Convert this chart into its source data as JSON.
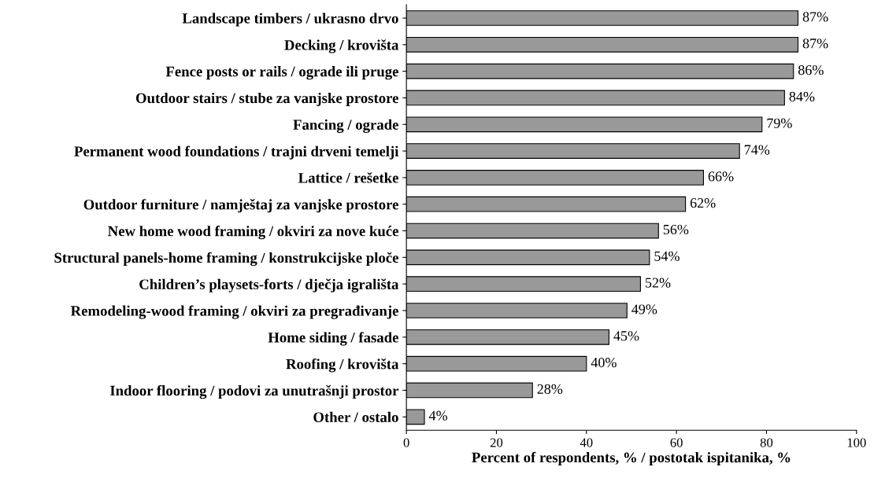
{
  "chart_data": {
    "type": "bar",
    "orientation": "horizontal",
    "xlabel": "Percent of respondents, % / postotak ispitanika, %",
    "categories": [
      "Landscape timbers / ukrasno drvo",
      "Decking / krovišta",
      "Fence posts or rails / ograde ili pruge",
      "Outdoor stairs / stube za vanjske prostore",
      "Fancing / ograde",
      "Permanent wood foundations / trajni drveni temelji",
      "Lattice / rešetke",
      "Outdoor furniture / namještaj za vanjske prostore",
      "New home wood framing / okviri za nove kuće",
      "Structural panels-home framing / konstrukcijske ploče",
      "Children’s playsets-forts / dječja igrališta",
      "Remodeling-wood framing / okviri za pregrađivanje",
      "Home siding / fasade",
      "Roofing / krovišta",
      "Indoor flooring / podovi za unutrašnji prostor",
      "Other / ostalo"
    ],
    "values": [
      87,
      87,
      86,
      84,
      79,
      74,
      66,
      62,
      56,
      54,
      52,
      49,
      45,
      40,
      28,
      4
    ],
    "value_labels": [
      "87%",
      "87%",
      "86%",
      "84%",
      "79%",
      "74%",
      "66%",
      "62%",
      "56%",
      "54%",
      "52%",
      "49%",
      "45%",
      "40%",
      "28%",
      "4%"
    ],
    "color": "#999999",
    "xlim": [
      0,
      100
    ],
    "xticks": [
      0,
      20,
      40,
      60,
      80,
      100
    ],
    "grid": false,
    "legend": false
  }
}
